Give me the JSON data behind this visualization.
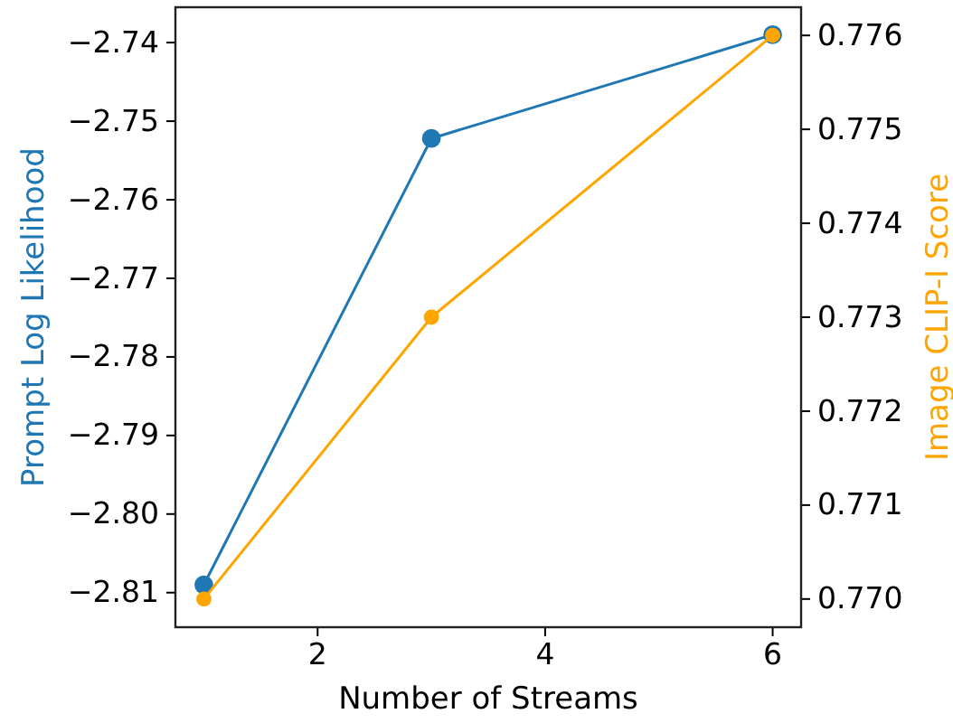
{
  "chart_data": {
    "type": "line",
    "xlabel": "Number of Streams",
    "ylabel": "Prompt Log Likelihood",
    "y2label": "Image CLIP-I Score",
    "x": [
      1,
      3,
      6
    ],
    "xlim": [
      0.75,
      6.25
    ],
    "xticks": [
      2,
      4,
      6
    ],
    "ylim": [
      -2.8144,
      -2.7355
    ],
    "yticks": [
      {
        "value": -2.81,
        "label": "−2.81"
      },
      {
        "value": -2.8,
        "label": "−2.80"
      },
      {
        "value": -2.79,
        "label": "−2.79"
      },
      {
        "value": -2.78,
        "label": "−2.78"
      },
      {
        "value": -2.77,
        "label": "−2.77"
      },
      {
        "value": -2.76,
        "label": "−2.76"
      },
      {
        "value": -2.75,
        "label": "−2.75"
      },
      {
        "value": -2.74,
        "label": "−2.74"
      }
    ],
    "y2lim": [
      0.7697,
      0.7763
    ],
    "y2ticks": [
      {
        "value": 0.77,
        "label": "0.770"
      },
      0.771,
      0.772,
      0.773,
      0.774,
      0.775,
      0.776
    ],
    "marker": "circle",
    "series": [
      {
        "color": "#1f77b4",
        "values": [
          -2.809,
          -2.7522,
          -2.739
        ]
      },
      {
        "color": "#ffa500",
        "values": [
          0.77,
          0.773,
          0.776
        ],
        "axis": "y2"
      }
    ]
  }
}
